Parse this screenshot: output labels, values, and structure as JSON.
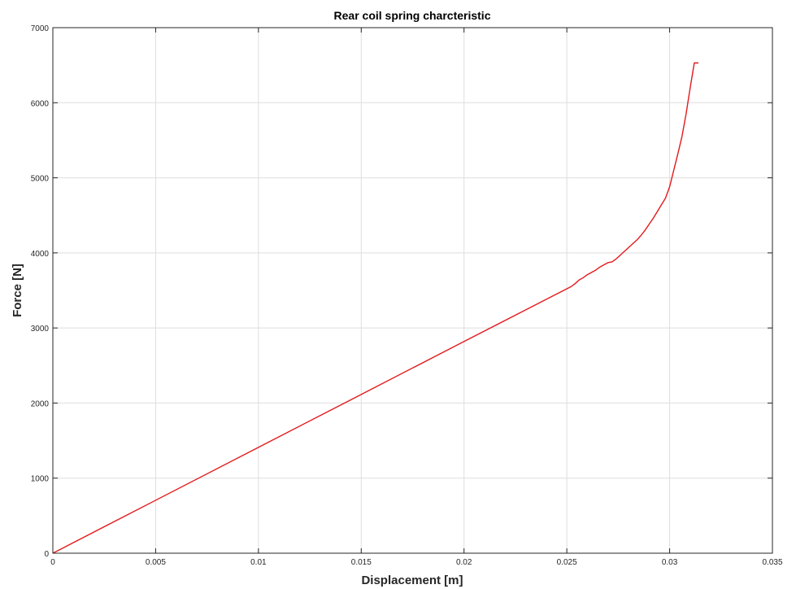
{
  "chart_data": {
    "type": "line",
    "title": "Rear coil spring charcteristic",
    "xlabel": "Displacement [m]",
    "ylabel": "Force [N]",
    "xlim": [
      0,
      0.035
    ],
    "ylim": [
      0,
      7000
    ],
    "x_ticks": [
      "0",
      "0.005",
      "0.01",
      "0.015",
      "0.02",
      "0.025",
      "0.03",
      "0.035"
    ],
    "y_ticks": [
      "0",
      "1000",
      "2000",
      "3000",
      "4000",
      "5000",
      "6000",
      "7000"
    ],
    "grid": true,
    "series": [
      {
        "color": "#e31a1c",
        "x": [
          0,
          0.005,
          0.01,
          0.015,
          0.02,
          0.0252,
          0.0254,
          0.0256,
          0.0258,
          0.026,
          0.0262,
          0.0264,
          0.0266,
          0.0268,
          0.027,
          0.0272,
          0.0274,
          0.0276,
          0.0278,
          0.028,
          0.0282,
          0.0284,
          0.0286,
          0.0288,
          0.029,
          0.0292,
          0.0294,
          0.0296,
          0.0298,
          0.03,
          0.0302,
          0.0304,
          0.0306,
          0.0308,
          0.031,
          0.0312,
          0.0314
        ],
        "y": [
          0,
          705,
          1410,
          2115,
          2820,
          3550,
          3590,
          3640,
          3670,
          3710,
          3740,
          3770,
          3810,
          3840,
          3870,
          3880,
          3920,
          3970,
          4020,
          4070,
          4120,
          4170,
          4230,
          4300,
          4380,
          4460,
          4550,
          4640,
          4730,
          4880,
          5100,
          5320,
          5550,
          5850,
          6200,
          6530,
          6530
        ]
      }
    ]
  }
}
